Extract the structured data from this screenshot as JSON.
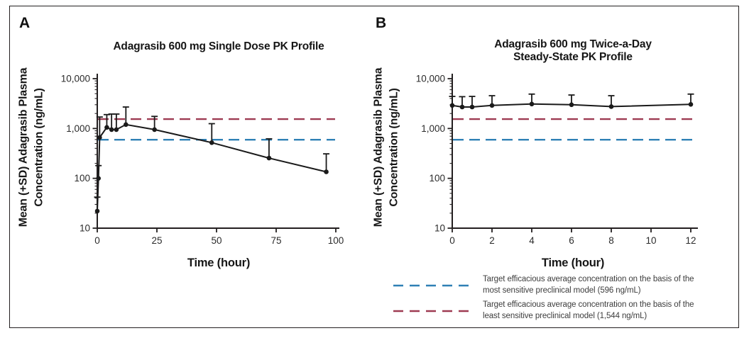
{
  "figure": {
    "panel_a_letter": "A",
    "panel_b_letter": "B"
  },
  "chart_data": [
    {
      "type": "line",
      "panel": "A",
      "title": "Adagrasib 600 mg Single Dose PK Profile",
      "title_lines": [
        "Adagrasib 600 mg Single Dose PK Profile"
      ],
      "xlabel": "Time (hour)",
      "ylabel": "Mean (+SD) Adagrasib Plasma Concentration (ng/mL)",
      "ylabel_lines": [
        "Mean (+SD) Adagrasib Plasma",
        "Concentration (ng/mL)"
      ],
      "y_scale": "log",
      "xlim": [
        0,
        100
      ],
      "ylim": [
        10,
        10000
      ],
      "x_ticks": [
        0,
        25,
        50,
        75,
        100
      ],
      "x_tick_labels": [
        "0",
        "25",
        "50",
        "75",
        "100"
      ],
      "y_ticks": [
        10,
        100,
        1000,
        10000
      ],
      "y_tick_labels": [
        "10",
        "100",
        "1,000",
        "10,000"
      ],
      "grid": false,
      "series": [
        {
          "name": "Mean (+SD) adagrasib plasma concentration",
          "x": [
            0,
            0.5,
            1,
            4,
            6,
            8,
            12,
            24,
            48,
            72,
            96
          ],
          "mean": [
            22,
            100,
            660,
            1050,
            950,
            950,
            1200,
            950,
            520,
            255,
            135
          ],
          "sd_top": [
            42,
            180,
            1700,
            1900,
            1950,
            1950,
            2700,
            1750,
            1250,
            620,
            310
          ]
        }
      ],
      "reference_lines": [
        {
          "value": 596,
          "color": "#2f80b5",
          "style": "dashed",
          "label": "Target efficacious average concentration on the basis of the most sensitive preclinical model (596 ng/mL)"
        },
        {
          "value": 1544,
          "color": "#9e3b52",
          "style": "dashed",
          "label": "Target efficacious average concentration on the basis of the least sensitive preclinical model (1,544 ng/mL)"
        }
      ]
    },
    {
      "type": "line",
      "panel": "B",
      "title": "Adagrasib 600 mg Twice-a-Day Steady-State PK Profile",
      "title_lines": [
        "Adagrasib 600 mg Twice-a-Day",
        "Steady-State PK Profile"
      ],
      "xlabel": "Time (hour)",
      "ylabel": "Mean (+SD) Adagrasib Plasma Concentration (ng/mL)",
      "ylabel_lines": [
        "Mean (+SD) Adagrasib Plasma",
        "Concentration (ng/mL)"
      ],
      "y_scale": "log",
      "xlim": [
        0,
        12
      ],
      "ylim": [
        10,
        10000
      ],
      "x_ticks": [
        0,
        2,
        4,
        6,
        8,
        10,
        12
      ],
      "x_tick_labels": [
        "0",
        "2",
        "4",
        "6",
        "8",
        "10",
        "12"
      ],
      "y_ticks": [
        10,
        100,
        1000,
        10000
      ],
      "y_tick_labels": [
        "10",
        "100",
        "1,000",
        "10,000"
      ],
      "grid": false,
      "series": [
        {
          "name": "Mean (+SD) adagrasib plasma concentration",
          "x": [
            0,
            0.5,
            1,
            2,
            4,
            6,
            8,
            12
          ],
          "mean": [
            2900,
            2700,
            2700,
            2900,
            3100,
            3000,
            2750,
            3050
          ],
          "sd_top": [
            4400,
            4350,
            4400,
            4550,
            4900,
            4700,
            4550,
            4900
          ]
        }
      ],
      "reference_lines": [
        {
          "value": 596,
          "color": "#2f80b5",
          "style": "dashed",
          "label": "Target efficacious average concentration on the basis of the most sensitive preclinical model (596 ng/mL)"
        },
        {
          "value": 1544,
          "color": "#9e3b52",
          "style": "dashed",
          "label": "Target efficacious average concentration on the basis of the least sensitive preclinical model (1,544 ng/mL)"
        }
      ]
    }
  ],
  "legend": {
    "items": [
      {
        "color": "#2f80b5",
        "line1": "Target efficacious average concentration on the basis of the",
        "line2": "most sensitive preclinical model (596 ng/mL)"
      },
      {
        "color": "#9e3b52",
        "line1": "Target efficacious average concentration on the basis of the",
        "line2": "least sensitive preclinical model (1,544 ng/mL)"
      }
    ]
  }
}
